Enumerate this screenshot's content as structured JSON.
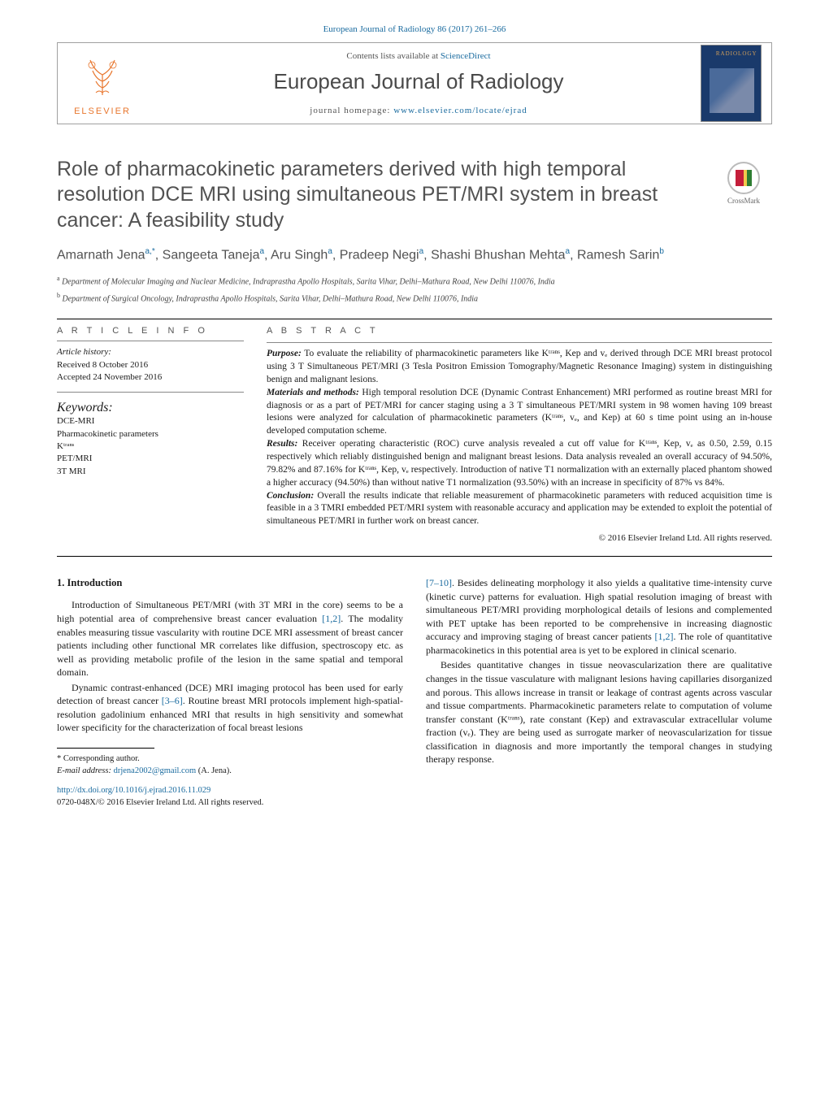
{
  "header": {
    "topLink": "European Journal of Radiology 86 (2017) 261–266",
    "contentsLine1": "Contents lists available at ",
    "contentsLink": "ScienceDirect",
    "journalName": "European Journal of Radiology",
    "homepagePrefix": "journal homepage: ",
    "homepageUrl": "www.elsevier.com/locate/ejrad",
    "publisherName": "ELSEVIER",
    "coverLabel": "RADIOLOGY",
    "crossmarkLabel": "CrossMark"
  },
  "article": {
    "title": "Role of pharmacokinetic parameters derived with high temporal resolution DCE MRI using simultaneous PET/MRI system in breast cancer: A feasibility study",
    "authorsHtmlParts": [
      {
        "t": "Amarnath Jena"
      },
      {
        "s": "a,"
      },
      {
        "s": "*"
      },
      {
        "t": ", Sangeeta Taneja"
      },
      {
        "s": "a"
      },
      {
        "t": ", Aru Singh"
      },
      {
        "s": "a"
      },
      {
        "t": ", Pradeep Negi"
      },
      {
        "s": "a"
      },
      {
        "t": ", Shashi Bhushan Mehta"
      },
      {
        "s": "a"
      },
      {
        "t": ", Ramesh Sarin"
      },
      {
        "s": "b"
      }
    ],
    "affiliations": [
      {
        "sup": "a",
        "text": " Department of Molecular Imaging and Nuclear Medicine, Indraprastha Apollo Hospitals, Sarita Vihar, Delhi–Mathura Road, New Delhi 110076, India"
      },
      {
        "sup": "b",
        "text": " Department of Surgical Oncology, Indraprastha Apollo Hospitals, Sarita Vihar, Delhi–Mathura Road, New Delhi 110076, India"
      }
    ]
  },
  "info": {
    "heading": "a r t i c l e   i n f o",
    "historyLabel": "Article history:",
    "received": "Received 8 October 2016",
    "accepted": "Accepted 24 November 2016",
    "keywordsLabel": "Keywords:",
    "keywords": [
      "DCE-MRI",
      "Pharmacokinetic parameters",
      "Kᵗʳᵃⁿˢ",
      "PET/MRI",
      "3T MRI"
    ]
  },
  "abstract": {
    "heading": "a b s t r a c t",
    "sections": [
      {
        "lead": "Purpose:",
        "text": " To evaluate the reliability of pharmacokinetic parameters like Kᵗʳᵃⁿˢ, Kep and vₑ derived through DCE MRI breast protocol using 3 T Simultaneous PET/MRI (3 Tesla Positron Emission Tomography/Magnetic Resonance Imaging) system in distinguishing benign and malignant lesions."
      },
      {
        "lead": "Materials and methods:",
        "text": " High temporal resolution DCE (Dynamic Contrast Enhancement) MRI performed as routine breast MRI for diagnosis or as a part of PET/MRI for cancer staging using a 3 T simultaneous PET/MRI system in 98 women having 109 breast lesions were analyzed for calculation of pharmacokinetic parameters (Kᵗʳᵃⁿˢ, vₑ, and Kep) at 60 s time point using an in-house developed computation scheme."
      },
      {
        "lead": "Results:",
        "text": " Receiver operating characteristic (ROC) curve analysis revealed a cut off value for Kᵗʳᵃⁿˢ, Kep, vₑ as 0.50, 2.59, 0.15 respectively which reliably distinguished benign and malignant breast lesions. Data analysis revealed an overall accuracy of 94.50%, 79.82% and 87.16% for Kᵗʳᵃⁿˢ, Kep, vₑ respectively. Introduction of native T1 normalization with an externally placed phantom showed a higher accuracy (94.50%) than without native T1 normalization (93.50%) with an increase in specificity of 87% vs 84%."
      },
      {
        "lead": "Conclusion:",
        "text": " Overall the results indicate that reliable measurement of pharmacokinetic parameters with reduced acquisition time is feasible in a 3 TMRI embedded PET/MRI system with reasonable accuracy and application may be extended to exploit the potential of simultaneous PET/MRI in further work on breast cancer."
      }
    ],
    "copyright": "© 2016 Elsevier Ireland Ltd. All rights reserved."
  },
  "body": {
    "section1": {
      "heading": "1.  Introduction",
      "col1": [
        {
          "text": "Introduction of Simultaneous PET/MRI (with 3T MRI in the core) seems to be a high potential area of comprehensive breast cancer evaluation ",
          "ref": "[1,2]",
          "tail": ". The modality enables measuring tissue vascularity with routine DCE MRI assessment of breast cancer patients including other functional MR correlates like diffusion, spectroscopy etc. as well as providing metabolic profile of the lesion in the same spatial and temporal domain."
        },
        {
          "text": "Dynamic contrast-enhanced (DCE) MRI imaging protocol has been used for early detection of breast cancer ",
          "ref": "[3–6]",
          "tail": ". Routine breast MRI protocols implement high-spatial-resolution gadolinium enhanced MRI that results in high sensitivity and somewhat lower specificity for the characterization of focal breast lesions"
        }
      ],
      "col2": [
        {
          "ref": "[7–10]",
          "text": ". Besides delineating morphology it also yields a qualitative time-intensity curve (kinetic curve) patterns for evaluation. High spatial resolution imaging of breast with simultaneous PET/MRI providing morphological details of lesions and complemented with PET uptake has been reported to be comprehensive in increasing diagnostic accuracy and improving staging of breast cancer patients ",
          "ref2": "[1,2]",
          "tail": ". The role of quantitative pharmacokinetics in this potential area is yet to be explored in clinical scenario."
        },
        {
          "text": "Besides quantitative changes in tissue neovascularization there are qualitative changes in the tissue vasculature with malignant lesions having capillaries disorganized and porous. This allows increase in transit or leakage of contrast agents across vascular and tissue compartments. Pharmacokinetic parameters relate to computation of volume transfer constant (Kᵗʳᵃⁿˢ), rate constant (Kep) and extravascular extracellular volume fraction (vₑ). They are being used as surrogate marker of neovascularization for tissue classification in diagnosis and more importantly the temporal changes in studying therapy response."
        }
      ]
    }
  },
  "footnote": {
    "corrLabel": "* Corresponding author.",
    "emailLabel": "E-mail address: ",
    "email": "drjena2002@gmail.com",
    "emailSuffix": " (A. Jena).",
    "doiUrl": "http://dx.doi.org/10.1016/j.ejrad.2016.11.029",
    "issn": "0720-048X/© 2016 Elsevier Ireland Ltd. All rights reserved."
  },
  "colors": {
    "link": "#1a6b9f",
    "elsevierOrange": "#e8762d",
    "headingGray": "#525252",
    "textGray": "#1a1a1a",
    "coverBlue": "#1a3a6b"
  }
}
